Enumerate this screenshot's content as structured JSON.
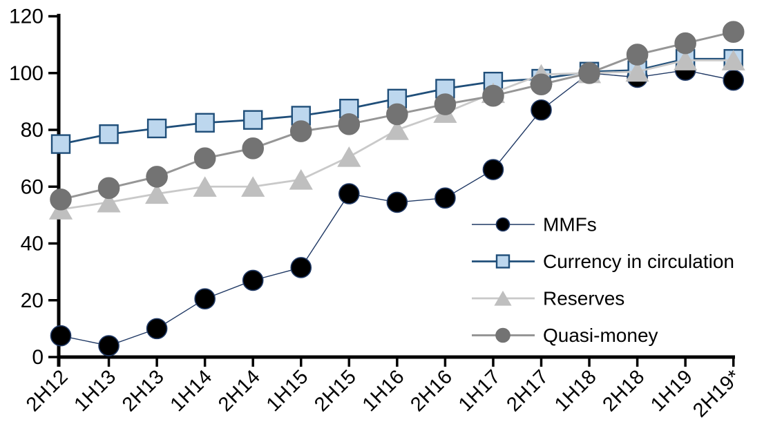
{
  "figure": {
    "background": "#FFFFFF",
    "axis_color": "#000000"
  },
  "chart_data": {
    "type": "line",
    "title": "",
    "xlabel": "",
    "ylabel": "",
    "grid": false,
    "ylim": [
      0,
      120
    ],
    "yticks": [
      0,
      20,
      40,
      60,
      80,
      100,
      120
    ],
    "categories": [
      "2H12",
      "1H13",
      "2H13",
      "1H14",
      "2H14",
      "1H15",
      "2H15",
      "1H16",
      "2H16",
      "1H17",
      "2H17",
      "1H18",
      "2H18",
      "1H19",
      "2H19*"
    ],
    "series": [
      {
        "name": "MMFs",
        "values": [
          7.5,
          4,
          10,
          20.5,
          27,
          31.5,
          57.5,
          54.5,
          56,
          66,
          87,
          100,
          98.5,
          101,
          97.5
        ],
        "marker": "circle",
        "marker_fill": "#000000",
        "marker_edge": "#1F3864",
        "marker_size": 29,
        "legend_size": 19,
        "line_color": "#1F3864",
        "line_width": 1.4
      },
      {
        "name": "Currency in circulation",
        "values": [
          75,
          78.5,
          80.5,
          82.5,
          83.5,
          85,
          87.5,
          91,
          94.5,
          97,
          98,
          100.5,
          101,
          105,
          105
        ],
        "marker": "square",
        "marker_fill": "#BDD7EE",
        "marker_edge": "#1F4E79",
        "marker_size": 26,
        "legend_size": 18,
        "line_color": "#1F4E79",
        "line_width": 2.8
      },
      {
        "name": "Reserves",
        "values": [
          52,
          54.5,
          57.5,
          60,
          60,
          62.5,
          70.5,
          80,
          86,
          93,
          99.5,
          100,
          100.5,
          104.5,
          104.5
        ],
        "marker": "triangle",
        "marker_fill": "#BFBFBF",
        "marker_edge": "#BFBFBF",
        "marker_size": 29,
        "legend_size": 21,
        "line_color": "#C9C9C9",
        "line_width": 2.8
      },
      {
        "name": "Quasi-money",
        "values": [
          55.5,
          59.5,
          63.5,
          70,
          73.5,
          79.5,
          82,
          85.5,
          89,
          92,
          96,
          100,
          106.5,
          110.5,
          114.5
        ],
        "marker": "circle",
        "marker_fill": "#737373",
        "marker_edge": "#737373",
        "marker_size": 30,
        "legend_size": 20,
        "line_color": "#969696",
        "line_width": 3
      }
    ],
    "legend_position": "center-right"
  }
}
